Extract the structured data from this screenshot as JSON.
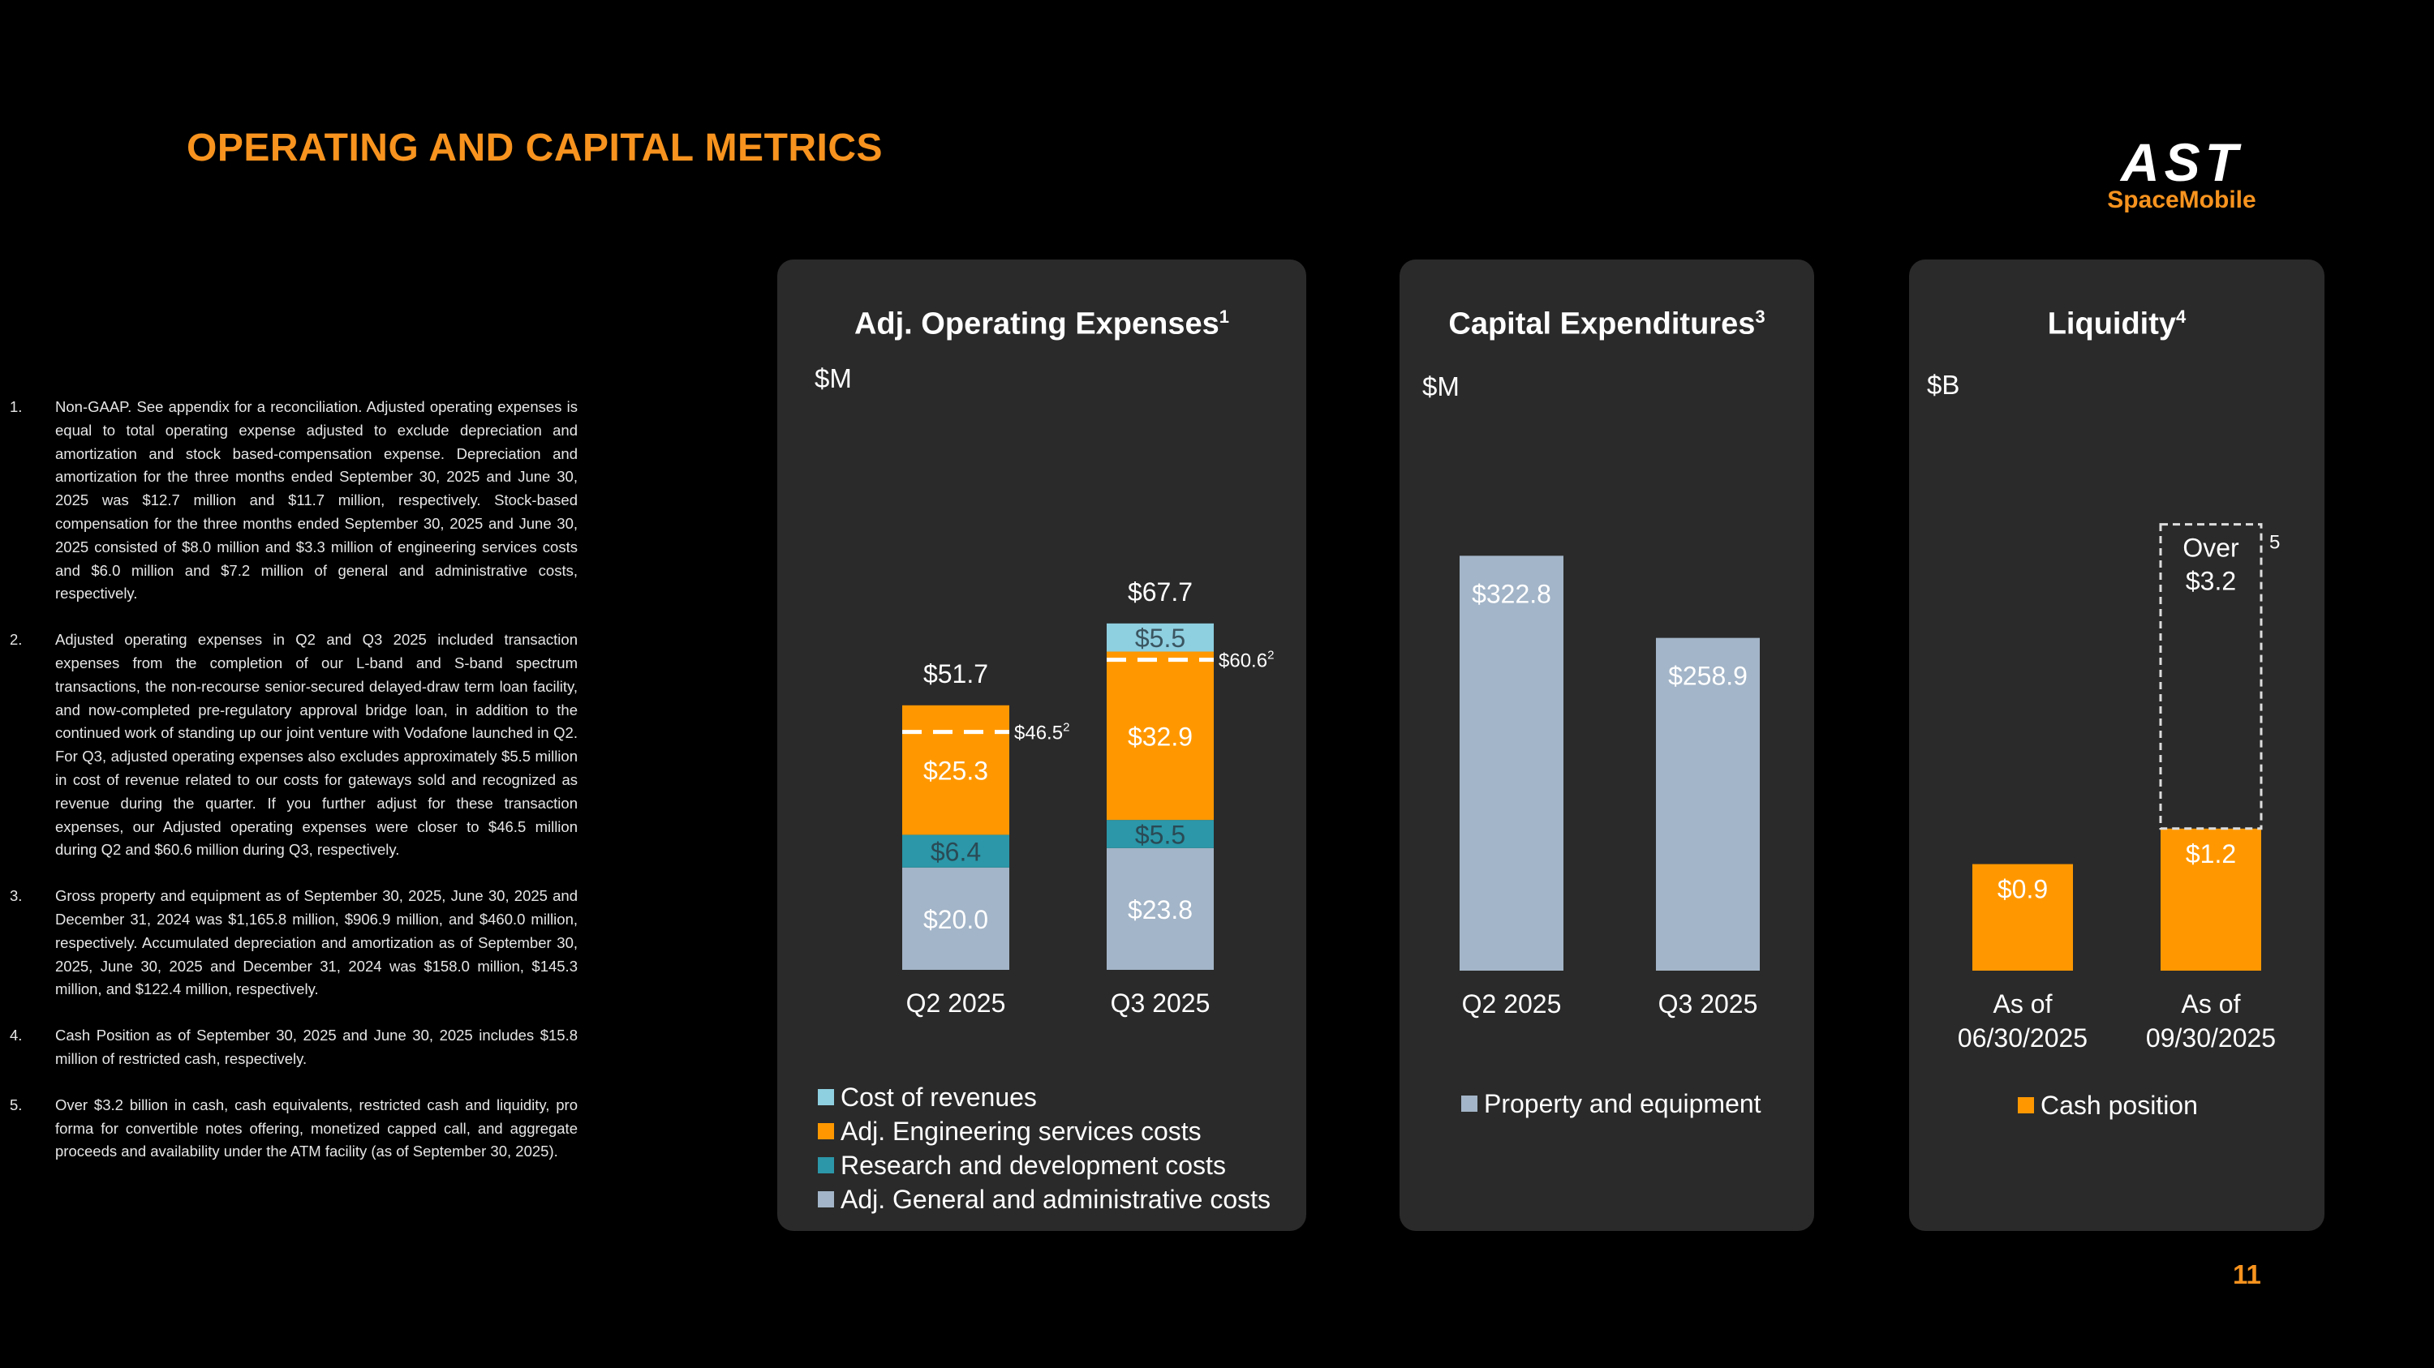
{
  "slide": {
    "title": "OPERATING AND CAPITAL METRICS",
    "page_number": "11",
    "logo": {
      "main": "AST",
      "sub": "SpaceMobile"
    }
  },
  "colors": {
    "accent": "#f7931e",
    "cost_of_revenues": "#8ecfe0",
    "engineering": "#ff9800",
    "research": "#2b97a8",
    "general_admin": "#a3b5c8",
    "property": "#a3b5c8",
    "cash": "#ff9800"
  },
  "footnotes": [
    {
      "num": "1.",
      "text": "Non-GAAP. See appendix for a reconciliation. Adjusted operating expenses is equal to total operating expense adjusted to exclude depreciation and amortization and stock based-compensation expense. Depreciation and amortization for the three months ended September 30, 2025 and June 30, 2025 was $12.7 million and $11.7 million, respectively. Stock-based compensation for the three months ended September 30, 2025 and June 30, 2025 consisted of $8.0 million and $3.3 million of engineering services costs and $6.0 million and $7.2 million of general and administrative costs, respectively."
    },
    {
      "num": "2.",
      "text": "Adjusted operating expenses in Q2 and Q3 2025 included transaction expenses from the completion of our L-band and S-band spectrum transactions, the non-recourse senior-secured delayed-draw term loan facility, and now-completed pre-regulatory approval bridge loan, in addition to the continued work of standing up our joint venture with Vodafone launched in Q2. For Q3, adjusted operating expenses also excludes approximately $5.5 million in cost of revenue related to our costs for gateways sold and recognized as revenue during the quarter. If you further adjust for these transaction expenses, our Adjusted operating expenses were closer to $46.5 million during Q2 and $60.6 million during Q3, respectively."
    },
    {
      "num": "3.",
      "text": "Gross property and equipment as of September 30, 2025, June 30, 2025 and December 31, 2024 was $1,165.8 million, $906.9 million, and $460.0 million, respectively. Accumulated depreciation and amortization as of September 30, 2025, June 30, 2025 and December 31, 2024 was $158.0 million, $145.3 million, and $122.4 million, respectively."
    },
    {
      "num": "4.",
      "text": "Cash Position as of September 30, 2025 and June 30, 2025 includes $15.8 million of restricted cash, respectively."
    },
    {
      "num": "5.",
      "text": "Over $3.2 billion in cash, cash equivalents, restricted cash and liquidity, pro forma for convertible notes offering, monetized capped call, and aggregate proceeds and availability under the ATM facility (as of September 30, 2025)."
    }
  ],
  "chart_data": [
    {
      "type": "bar",
      "stacked": true,
      "title": "Adj. Operating Expenses",
      "title_sup": "1",
      "unit": "$M",
      "categories": [
        "Q2 2025",
        "Q3 2025"
      ],
      "series": [
        {
          "name": "Adj. General and administrative costs",
          "values": [
            20.0,
            23.8
          ],
          "labels": [
            "$20.0",
            "$23.8"
          ]
        },
        {
          "name": "Research and development costs",
          "values": [
            6.4,
            5.5
          ],
          "labels": [
            "$6.4",
            "$5.5"
          ]
        },
        {
          "name": "Adj. Engineering services costs",
          "values": [
            25.3,
            32.9
          ],
          "labels": [
            "$25.3",
            "$32.9"
          ]
        },
        {
          "name": "Cost of revenues",
          "values": [
            0,
            5.5
          ],
          "labels": [
            "",
            "$5.5"
          ]
        }
      ],
      "totals": [
        51.7,
        67.7
      ],
      "total_labels": [
        "$51.7",
        "$67.7"
      ],
      "adjusted_markers": [
        46.5,
        60.6
      ],
      "adjusted_labels": [
        "$46.5",
        "$60.6"
      ],
      "adjusted_sup": "2",
      "legend_order": [
        "Cost of revenues",
        "Adj. Engineering services costs",
        "Research and development costs",
        "Adj. General and administrative costs"
      ],
      "ylim": [
        0,
        70
      ]
    },
    {
      "type": "bar",
      "title": "Capital Expenditures",
      "title_sup": "3",
      "unit": "$M",
      "categories": [
        "Q2 2025",
        "Q3 2025"
      ],
      "series": [
        {
          "name": "Property and equipment",
          "values": [
            322.8,
            258.9
          ],
          "labels": [
            "$322.8",
            "$258.9"
          ]
        }
      ],
      "ylim": [
        0,
        380
      ]
    },
    {
      "type": "bar",
      "title": "Liquidity",
      "title_sup": "4",
      "unit": "$B",
      "categories": [
        "As of|06/30/2025",
        "As of|09/30/2025"
      ],
      "series": [
        {
          "name": "Cash position",
          "values": [
            0.9,
            1.2
          ],
          "labels": [
            "$0.9",
            "$1.2"
          ]
        }
      ],
      "pro_forma": {
        "value": 3.2,
        "label_line1": "Over",
        "label_line2": "$3.2",
        "sup": "5"
      },
      "ylim": [
        0,
        3.6
      ]
    }
  ]
}
